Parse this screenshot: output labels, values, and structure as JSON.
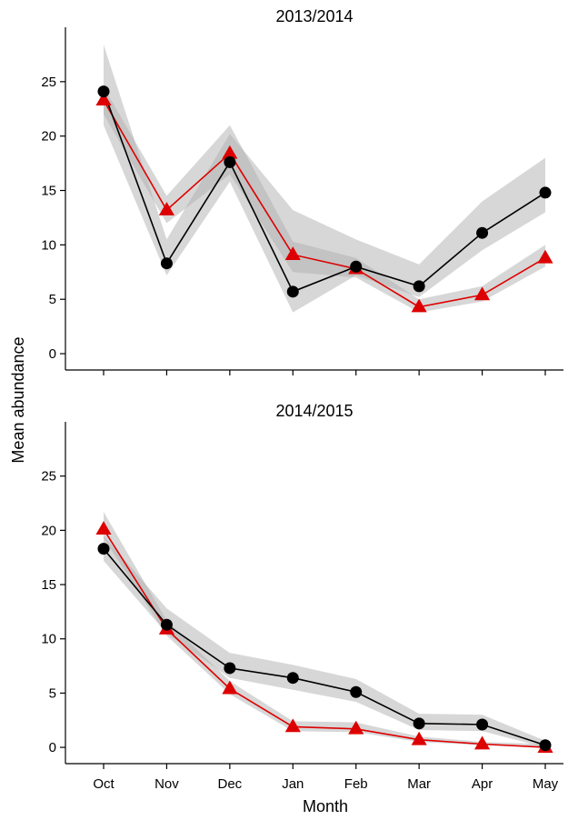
{
  "chart_data": {
    "type": "line",
    "xlabel": "Month",
    "ylabel": "Mean abundance",
    "categories": [
      "Oct",
      "Nov",
      "Dec",
      "Jan",
      "Feb",
      "Mar",
      "Apr",
      "May"
    ],
    "ylim": [
      -1.5,
      30
    ],
    "yticks": [
      0,
      5,
      10,
      15,
      20,
      25
    ],
    "grid": false,
    "colors": {
      "black_series": "#000000",
      "red_series": "#dd0000",
      "band": "#b0b0b0"
    },
    "panels": [
      {
        "title": "2013/2014",
        "series": [
          {
            "marker": "circle",
            "color": "#000000",
            "values": [
              24.1,
              8.3,
              17.6,
              5.7,
              8.0,
              6.2,
              11.1,
              14.8
            ],
            "lower": [
              21.0,
              7.2,
              15.8,
              3.8,
              7.2,
              5.2,
              9.5,
              13.0
            ],
            "upper": [
              28.4,
              10.5,
              20.2,
              13.2,
              10.5,
              8.2,
              14.0,
              18.0
            ]
          },
          {
            "marker": "triangle",
            "color": "#dd0000",
            "values": [
              23.3,
              13.2,
              18.4,
              9.1,
              7.8,
              4.3,
              5.4,
              8.8
            ],
            "lower": [
              22.0,
              12.0,
              16.5,
              7.5,
              7.0,
              3.8,
              4.8,
              8.0
            ],
            "upper": [
              24.5,
              14.5,
              21.0,
              10.3,
              8.8,
              5.0,
              6.2,
              10.0
            ]
          }
        ]
      },
      {
        "title": "2014/2015",
        "series": [
          {
            "marker": "circle",
            "color": "#000000",
            "values": [
              18.3,
              11.3,
              7.3,
              6.4,
              5.1,
              2.2,
              2.1,
              0.2
            ],
            "lower": [
              17.2,
              10.5,
              6.4,
              5.3,
              4.2,
              1.6,
              1.5,
              0.0
            ],
            "upper": [
              19.5,
              12.8,
              8.7,
              7.6,
              6.3,
              3.1,
              3.0,
              0.6
            ]
          },
          {
            "marker": "triangle",
            "color": "#dd0000",
            "values": [
              20.1,
              10.9,
              5.4,
              1.9,
              1.7,
              0.7,
              0.3,
              0.0
            ],
            "lower": [
              19.3,
              10.3,
              4.9,
              1.5,
              1.4,
              0.5,
              0.2,
              0.0
            ],
            "upper": [
              21.7,
              11.7,
              6.1,
              2.4,
              2.3,
              1.0,
              0.5,
              0.3
            ]
          }
        ]
      }
    ]
  }
}
